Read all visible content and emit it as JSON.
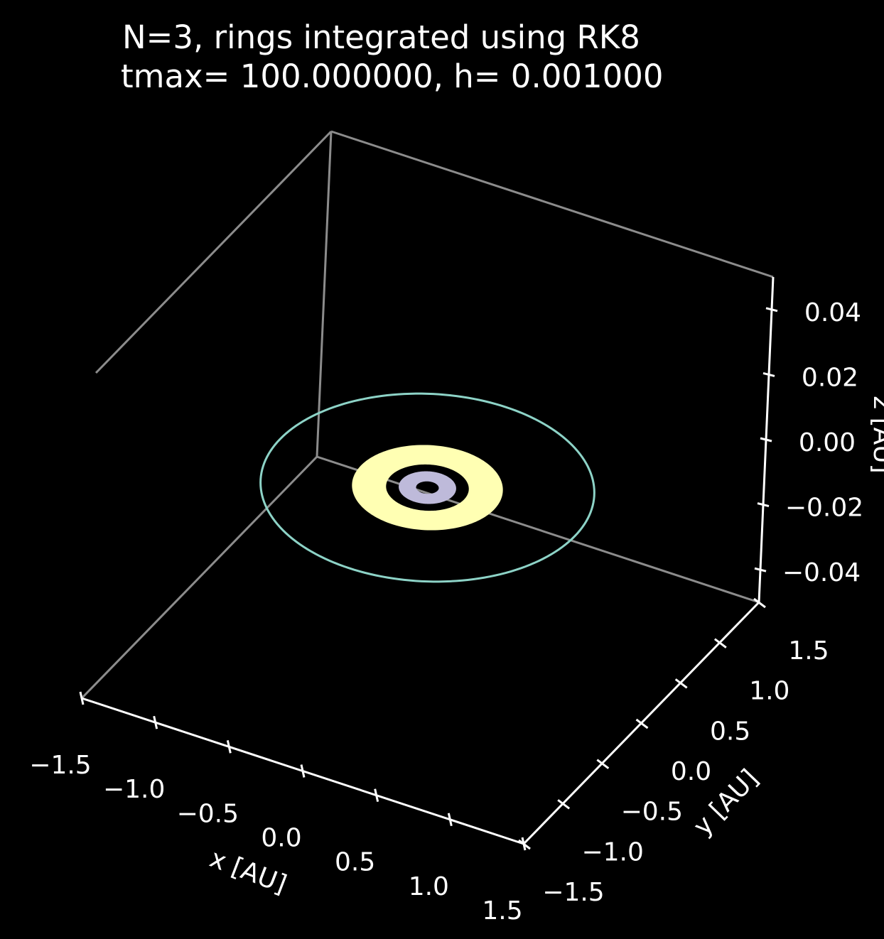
{
  "chart_data": {
    "type": "scatter3d",
    "title_line1": "N=3, rings integrated using RK8",
    "title_line2": "tmax= 100.000000, h= 0.001000",
    "xlabel": "x [AU]",
    "ylabel": "y [AU]",
    "zlabel": "z [AU]",
    "xlim": [
      -1.5,
      1.5
    ],
    "ylim": [
      -1.5,
      1.5
    ],
    "zlim": [
      -0.05,
      0.05
    ],
    "x_ticks": [
      "−1.5",
      "−1.0",
      "−0.5",
      "0.0",
      "0.5",
      "1.0",
      "1.5"
    ],
    "y_ticks": [
      "−1.5",
      "−1.0",
      "−0.5",
      "0.0",
      "0.5",
      "1.0",
      "1.5"
    ],
    "z_ticks": [
      "−0.04",
      "−0.02",
      "0.00",
      "0.02",
      "0.04"
    ],
    "background": "#000000",
    "grid": false,
    "series": [
      {
        "shape": "circle",
        "radius": 1.0,
        "z": 0,
        "color": "#8dd3c7"
      },
      {
        "shape": "annulus",
        "r_inner": 0.25,
        "r_outer": 0.45,
        "z": 0,
        "color": "#ffffb3"
      },
      {
        "shape": "annulus",
        "r_inner": 0.07,
        "r_outer": 0.17,
        "z": 0,
        "color": "#bebada"
      }
    ]
  }
}
